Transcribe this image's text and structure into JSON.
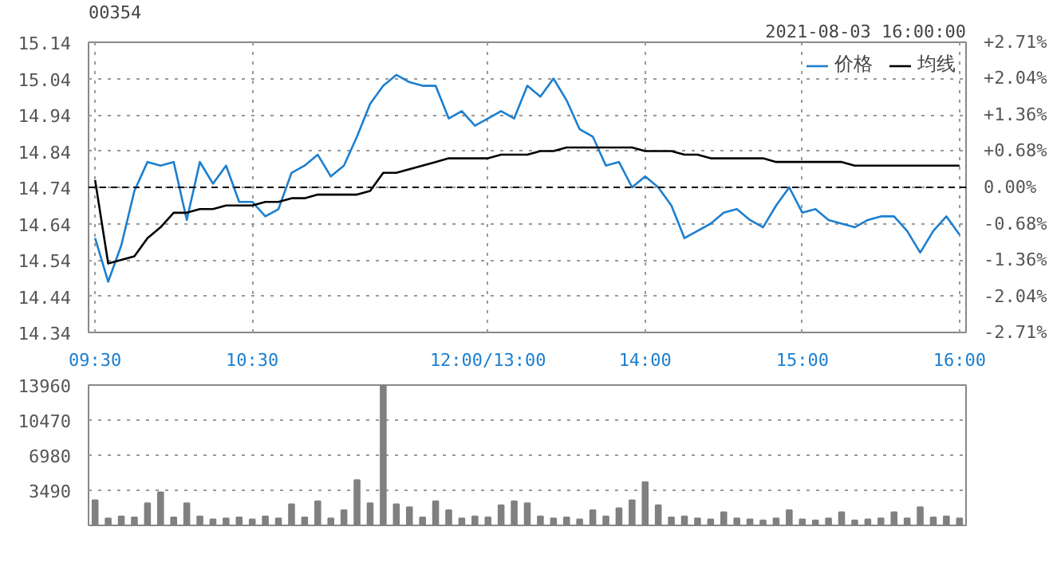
{
  "chart_data": [
    {
      "type": "line",
      "title": "00354",
      "annotations": [
        "2021-08-03 16:00:00"
      ],
      "categories": [
        "09:30",
        null,
        null,
        null,
        null,
        null,
        null,
        null,
        null,
        null,
        null,
        null,
        "10:30",
        null,
        null,
        null,
        null,
        null,
        null,
        null,
        null,
        null,
        null,
        null,
        null,
        null,
        null,
        null,
        null,
        null,
        "12:00/13:00",
        null,
        null,
        null,
        null,
        null,
        null,
        null,
        null,
        null,
        null,
        null,
        "14:00",
        null,
        null,
        null,
        null,
        null,
        null,
        null,
        null,
        null,
        null,
        null,
        "15:00",
        null,
        null,
        null,
        null,
        null,
        null,
        null,
        null,
        null,
        null,
        null,
        "16:00"
      ],
      "ylim": [
        14.34,
        15.14
      ],
      "yticks": [
        14.34,
        14.44,
        14.54,
        14.64,
        14.74,
        14.84,
        14.94,
        15.04,
        15.14
      ],
      "y2lim": [
        -2.71,
        2.71
      ],
      "y2ticks": [
        {
          "value": -2.71,
          "label": "-2.71%"
        },
        {
          "value": -2.04,
          "label": "-2.04%"
        },
        {
          "value": -1.36,
          "label": "-1.36%"
        },
        {
          "value": -0.68,
          "label": "-0.68%"
        },
        {
          "value": 0,
          "label": "0.00%"
        },
        {
          "value": 0.68,
          "label": "+0.68%"
        },
        {
          "value": 1.36,
          "label": "+1.36%"
        },
        {
          "value": 2.04,
          "label": "+2.04%"
        },
        {
          "value": 2.71,
          "label": "+2.71%"
        }
      ],
      "grid": true,
      "legend": "top right",
      "ref_lines": [
        {
          "axis": "y",
          "value": 14.74,
          "line_style": "dashed",
          "color": "#000000"
        }
      ],
      "series": [
        {
          "name": "价格",
          "color": "#1c7fcf",
          "values": [
            14.6,
            14.48,
            14.58,
            14.73,
            14.81,
            14.8,
            14.81,
            14.65,
            14.81,
            14.75,
            14.8,
            14.7,
            14.7,
            14.66,
            14.68,
            14.78,
            14.8,
            14.83,
            14.77,
            14.8,
            14.88,
            14.97,
            15.02,
            15.05,
            15.03,
            15.02,
            15.02,
            14.93,
            14.95,
            14.91,
            14.93,
            14.95,
            14.93,
            15.02,
            14.99,
            15.04,
            14.98,
            14.9,
            14.88,
            14.8,
            14.81,
            14.74,
            14.77,
            14.74,
            14.69,
            14.6,
            14.62,
            14.64,
            14.67,
            14.68,
            14.65,
            14.63,
            14.69,
            14.74,
            14.67,
            14.68,
            14.65,
            14.64,
            14.63,
            14.65,
            14.66,
            14.66,
            14.62,
            14.56,
            14.62,
            14.66,
            14.61
          ]
        },
        {
          "name": "均线",
          "color": "#000000",
          "values": [
            14.76,
            14.53,
            14.54,
            14.55,
            14.6,
            14.63,
            14.67,
            14.67,
            14.68,
            14.68,
            14.69,
            14.69,
            14.69,
            14.7,
            14.7,
            14.71,
            14.71,
            14.72,
            14.72,
            14.72,
            14.72,
            14.73,
            14.78,
            14.78,
            14.79,
            14.8,
            14.81,
            14.82,
            14.82,
            14.82,
            14.82,
            14.83,
            14.83,
            14.83,
            14.84,
            14.84,
            14.85,
            14.85,
            14.85,
            14.85,
            14.85,
            14.85,
            14.84,
            14.84,
            14.84,
            14.83,
            14.83,
            14.82,
            14.82,
            14.82,
            14.82,
            14.82,
            14.81,
            14.81,
            14.81,
            14.81,
            14.81,
            14.81,
            14.8,
            14.8,
            14.8,
            14.8,
            14.8,
            14.8,
            14.8,
            14.8,
            14.8
          ]
        }
      ]
    },
    {
      "type": "bar",
      "categories": [
        null,
        null,
        null,
        null,
        null,
        null,
        null,
        null,
        null,
        null,
        null,
        null,
        null,
        null,
        null,
        null,
        null,
        null,
        null,
        null,
        null,
        null,
        null,
        null,
        null,
        null,
        null,
        null,
        null,
        null,
        null,
        null,
        null,
        null,
        null,
        null,
        null,
        null,
        null,
        null,
        null,
        null,
        null,
        null,
        null,
        null,
        null,
        null,
        null,
        null,
        null,
        null,
        null,
        null,
        null,
        null,
        null,
        null,
        null,
        null,
        null,
        null,
        null,
        null,
        null,
        null,
        null
      ],
      "ylim": [
        0,
        13960
      ],
      "yticks": [
        3490,
        6980,
        10470,
        13960
      ],
      "grid": true,
      "tick_labels": "y",
      "color": "#808080",
      "values": [
        2500,
        700,
        900,
        800,
        2200,
        3300,
        800,
        2200,
        900,
        600,
        700,
        800,
        600,
        900,
        700,
        2100,
        800,
        2400,
        700,
        1500,
        4500,
        2200,
        13960,
        2100,
        1800,
        800,
        2400,
        1500,
        700,
        900,
        800,
        2000,
        2400,
        2200,
        900,
        700,
        800,
        600,
        1500,
        900,
        1700,
        2500,
        4300,
        2000,
        800,
        900,
        700,
        600,
        1300,
        700,
        600,
        500,
        700,
        1500,
        600,
        500,
        700,
        1300,
        500,
        600,
        700,
        1300,
        700,
        1800,
        800,
        900,
        700
      ]
    }
  ]
}
